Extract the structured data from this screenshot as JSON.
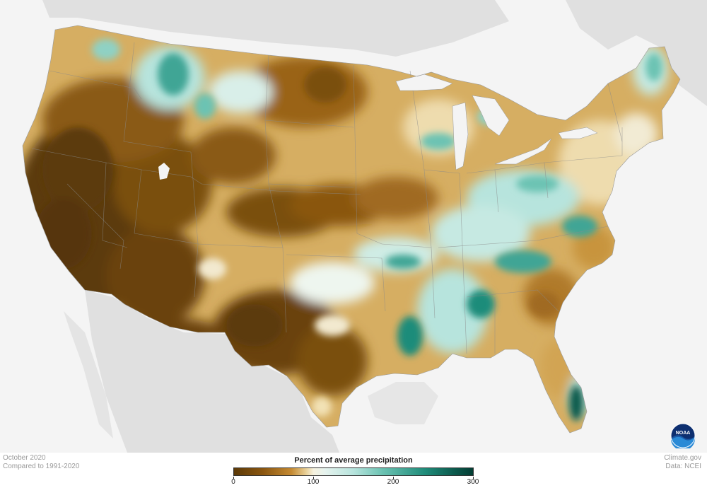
{
  "map": {
    "subject": "Contiguous United States precipitation map",
    "colors": {
      "very_dry": "#5c3a08",
      "dry": "#c58a32",
      "average": "#f6f2df",
      "wet": "#6cc3b3",
      "very_wet": "#033d33",
      "background_land": "#e0e0e0",
      "ocean": "#f4f4f4"
    }
  },
  "info": {
    "date": "October 2020",
    "comparison": "Compared to 1991-2020",
    "credit_site": "Climate.gov",
    "credit_data": "Data: NCEI"
  },
  "legend": {
    "title": "Percent of average precipitation",
    "ticks": [
      "0",
      "100",
      "200",
      "300"
    ],
    "range": [
      0,
      300
    ]
  },
  "logo": {
    "text": "NOAA",
    "icon": "noaa-logo-icon"
  }
}
